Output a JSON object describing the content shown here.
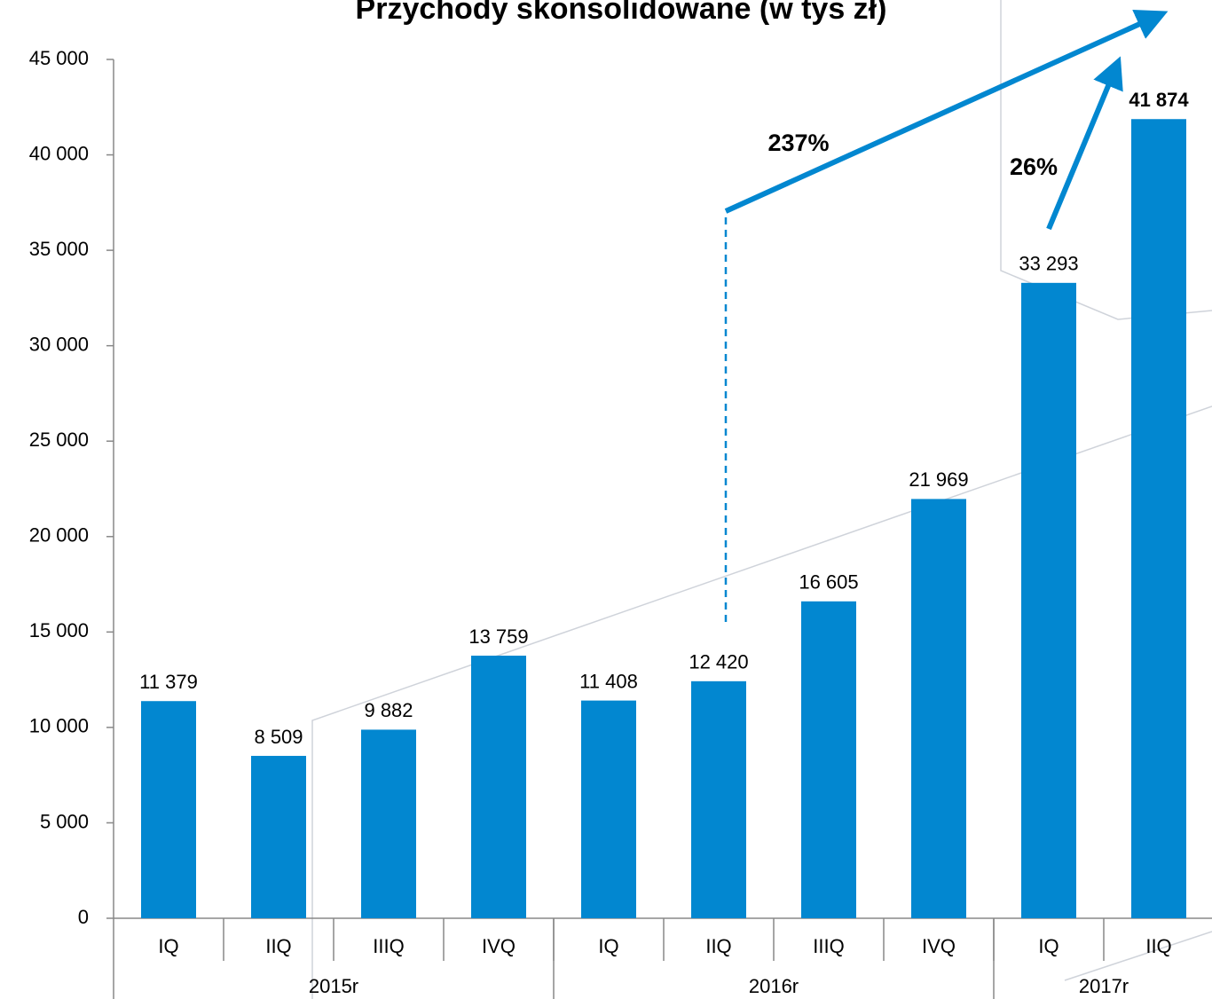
{
  "chart_data": {
    "type": "bar",
    "title": "Przychody skonsolidowane (w tys zł)",
    "categories": [
      "IQ",
      "IIQ",
      "IIIQ",
      "IVQ",
      "IQ",
      "IIQ",
      "IIIQ",
      "IVQ",
      "IQ",
      "IIQ"
    ],
    "groups": [
      {
        "label": "2015r",
        "count": 4
      },
      {
        "label": "2016r",
        "count": 4
      },
      {
        "label": "2017r",
        "count": 2
      }
    ],
    "values": [
      11379,
      8509,
      9882,
      13759,
      11408,
      12420,
      16605,
      21969,
      33293,
      41874
    ],
    "value_labels": [
      "11 379",
      "8 509",
      "9 882",
      "13 759",
      "11 408",
      "12 420",
      "16 605",
      "21 969",
      "33 293",
      "41 874"
    ],
    "highlight_index": 9,
    "color": "#0287d0",
    "ylim": [
      0,
      45000
    ],
    "yticks": [
      0,
      {
        "value": 5000,
        "label": "5 000"
      },
      {
        "value": 10000,
        "label": "10 000"
      },
      {
        "value": 15000,
        "label": "15 000"
      },
      {
        "value": 20000,
        "label": "20 000"
      },
      {
        "value": 25000,
        "label": "25 000"
      },
      {
        "value": 30000,
        "label": "30 000"
      },
      {
        "value": 35000,
        "label": "35 000"
      },
      {
        "value": 40000,
        "label": "40 000"
      },
      {
        "value": 45000,
        "label": "45 000"
      }
    ],
    "annotations": [
      "237%",
      "26%"
    ],
    "grid": false
  }
}
